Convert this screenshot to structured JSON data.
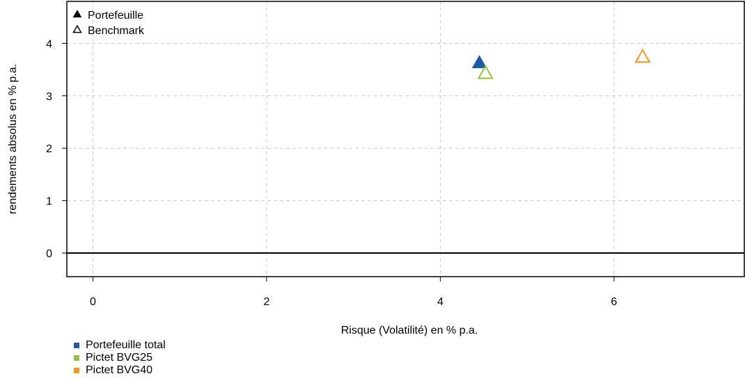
{
  "chart_data": {
    "type": "scatter",
    "xlabel": "Risque (Volatilité) en % p.a.",
    "ylabel": "rendements absolus en % p.a.",
    "xlim": [
      -0.3,
      7.5
    ],
    "ylim": [
      -0.45,
      4.8
    ],
    "xticks": [
      0,
      2,
      4,
      6
    ],
    "yticks": [
      0,
      1,
      2,
      3,
      4
    ],
    "grid": true,
    "shape_legend": [
      {
        "label": "Portefeuille",
        "marker": "filled-triangle"
      },
      {
        "label": "Benchmark",
        "marker": "open-triangle"
      }
    ],
    "series": [
      {
        "name": "Portefeuille total",
        "color": "#1f5aa6",
        "points": [
          {
            "x": 4.45,
            "y": 3.62,
            "kind": "Portefeuille"
          }
        ]
      },
      {
        "name": "Pictet BVG25",
        "color": "#8cc63f",
        "points": [
          {
            "x": 4.52,
            "y": 3.42,
            "kind": "Benchmark"
          }
        ]
      },
      {
        "name": "Pictet BVG40",
        "color": "#f7941d",
        "points": [
          {
            "x": 6.33,
            "y": 3.73,
            "kind": "Benchmark"
          }
        ]
      }
    ],
    "legend_position": "top-left"
  }
}
